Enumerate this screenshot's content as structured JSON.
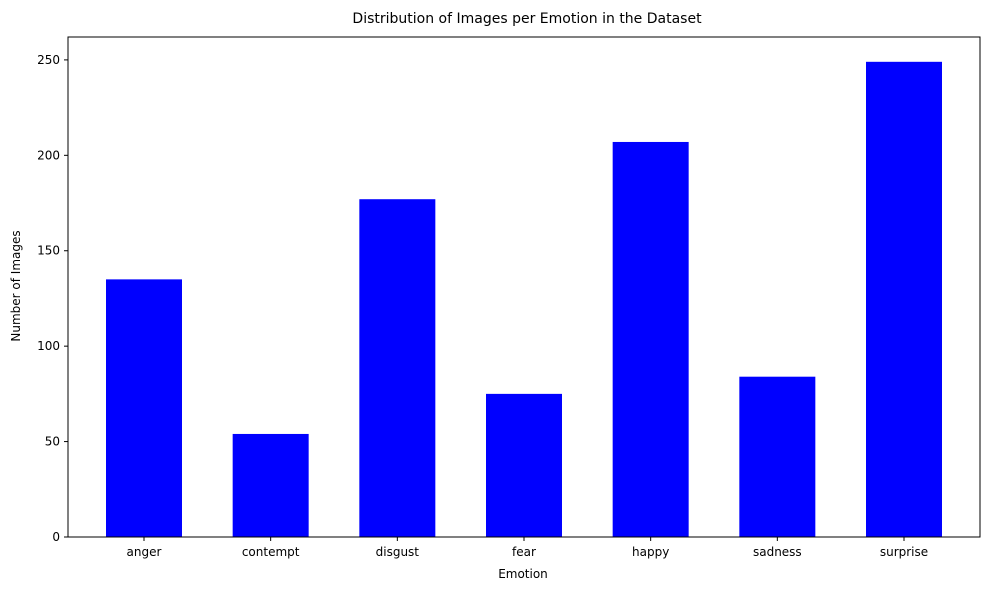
{
  "chart_data": {
    "type": "bar",
    "title": "Distribution of Images per Emotion in the Dataset",
    "xlabel": "Emotion",
    "ylabel": "Number of Images",
    "categories": [
      "anger",
      "contempt",
      "disgust",
      "fear",
      "happy",
      "sadness",
      "surprise"
    ],
    "values": [
      135,
      54,
      177,
      75,
      207,
      84,
      249
    ],
    "ylim": [
      0,
      262
    ],
    "yticks": [
      0,
      50,
      100,
      150,
      200,
      250
    ],
    "bar_color": "#0000ff",
    "grid": false,
    "legend": false
  }
}
